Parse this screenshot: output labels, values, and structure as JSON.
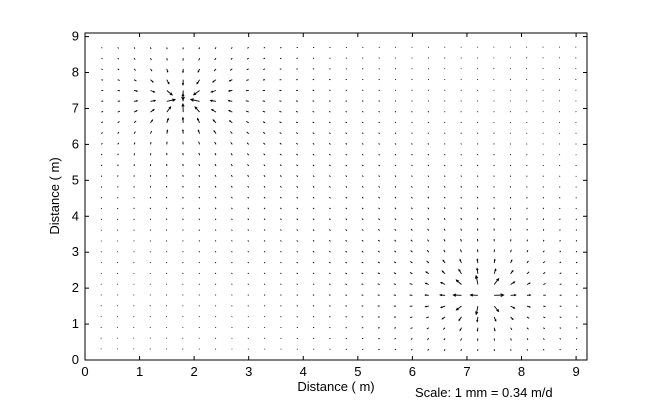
{
  "chart_data": {
    "type": "quiver",
    "title": "",
    "xlabel": "Distance ( m)",
    "ylabel": "Distance ( m)",
    "xlim": [
      0,
      9.2
    ],
    "ylim": [
      0,
      9.1
    ],
    "xticks": [
      "0",
      "1",
      "2",
      "3",
      "4",
      "5",
      "6",
      "7",
      "8",
      "9"
    ],
    "yticks": [
      "0",
      "1",
      "2",
      "3",
      "4",
      "5",
      "6",
      "7",
      "8",
      "9"
    ],
    "grid": false,
    "sink": {
      "x": 1.8,
      "y": 7.25
    },
    "source": {
      "x": 7.25,
      "y": 1.8
    },
    "scale_note": "Scale: 1 mm = 0.34 m/d"
  }
}
